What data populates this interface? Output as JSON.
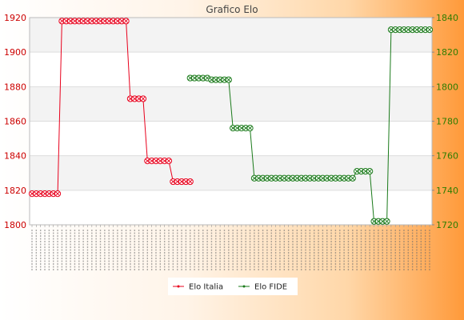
{
  "chart_data": {
    "type": "line",
    "title": "Grafico Elo",
    "grid": "horizontal bands",
    "legend_position": "bottom",
    "series": [
      {
        "name": "Elo Italia",
        "axis": "left",
        "color": "#e8001c",
        "points": [
          [
            0,
            1818
          ],
          [
            1,
            1818
          ],
          [
            2,
            1818
          ],
          [
            3,
            1818
          ],
          [
            4,
            1818
          ],
          [
            5,
            1818
          ],
          [
            6,
            1818
          ],
          [
            7,
            1918
          ],
          [
            8,
            1918
          ],
          [
            9,
            1918
          ],
          [
            10,
            1918
          ],
          [
            11,
            1918
          ],
          [
            12,
            1918
          ],
          [
            13,
            1918
          ],
          [
            14,
            1918
          ],
          [
            15,
            1918
          ],
          [
            16,
            1918
          ],
          [
            17,
            1918
          ],
          [
            18,
            1918
          ],
          [
            19,
            1918
          ],
          [
            20,
            1918
          ],
          [
            21,
            1918
          ],
          [
            22,
            1918
          ],
          [
            23,
            1873
          ],
          [
            24,
            1873
          ],
          [
            25,
            1873
          ],
          [
            26,
            1873
          ],
          [
            27,
            1837
          ],
          [
            28,
            1837
          ],
          [
            29,
            1837
          ],
          [
            30,
            1837
          ],
          [
            31,
            1837
          ],
          [
            32,
            1837
          ],
          [
            33,
            1825
          ],
          [
            34,
            1825
          ],
          [
            35,
            1825
          ],
          [
            36,
            1825
          ],
          [
            37,
            1825
          ]
        ]
      },
      {
        "name": "Elo FIDE",
        "axis": "right",
        "color": "#1a7a1a",
        "points": [
          [
            37,
            1805
          ],
          [
            38,
            1805
          ],
          [
            39,
            1805
          ],
          [
            40,
            1805
          ],
          [
            41,
            1805
          ],
          [
            42,
            1804
          ],
          [
            43,
            1804
          ],
          [
            44,
            1804
          ],
          [
            45,
            1804
          ],
          [
            46,
            1804
          ],
          [
            47,
            1776
          ],
          [
            48,
            1776
          ],
          [
            49,
            1776
          ],
          [
            50,
            1776
          ],
          [
            51,
            1776
          ],
          [
            52,
            1747
          ],
          [
            53,
            1747
          ],
          [
            54,
            1747
          ],
          [
            55,
            1747
          ],
          [
            56,
            1747
          ],
          [
            57,
            1747
          ],
          [
            58,
            1747
          ],
          [
            59,
            1747
          ],
          [
            60,
            1747
          ],
          [
            61,
            1747
          ],
          [
            62,
            1747
          ],
          [
            63,
            1747
          ],
          [
            64,
            1747
          ],
          [
            65,
            1747
          ],
          [
            66,
            1747
          ],
          [
            67,
            1747
          ],
          [
            68,
            1747
          ],
          [
            69,
            1747
          ],
          [
            70,
            1747
          ],
          [
            71,
            1747
          ],
          [
            72,
            1747
          ],
          [
            73,
            1747
          ],
          [
            74,
            1747
          ],
          [
            75,
            1747
          ],
          [
            76,
            1751
          ],
          [
            77,
            1751
          ],
          [
            78,
            1751
          ],
          [
            79,
            1751
          ],
          [
            80,
            1722
          ],
          [
            81,
            1722
          ],
          [
            82,
            1722
          ],
          [
            83,
            1722
          ],
          [
            84,
            1833
          ],
          [
            85,
            1833
          ],
          [
            86,
            1833
          ],
          [
            87,
            1833
          ],
          [
            88,
            1833
          ],
          [
            89,
            1833
          ],
          [
            90,
            1833
          ],
          [
            91,
            1833
          ],
          [
            92,
            1833
          ],
          [
            93,
            1833
          ]
        ]
      }
    ],
    "x_count": 94,
    "y_left": {
      "min": 1800,
      "max": 1920,
      "ticks": [
        1800,
        1820,
        1840,
        1860,
        1880,
        1900,
        1920
      ],
      "color": "#cc0000"
    },
    "y_right": {
      "min": 1720,
      "max": 1840,
      "ticks": [
        1720,
        1740,
        1760,
        1780,
        1800,
        1820,
        1840
      ],
      "color": "#2e7d00"
    },
    "x_tick_labels_legible": false
  }
}
